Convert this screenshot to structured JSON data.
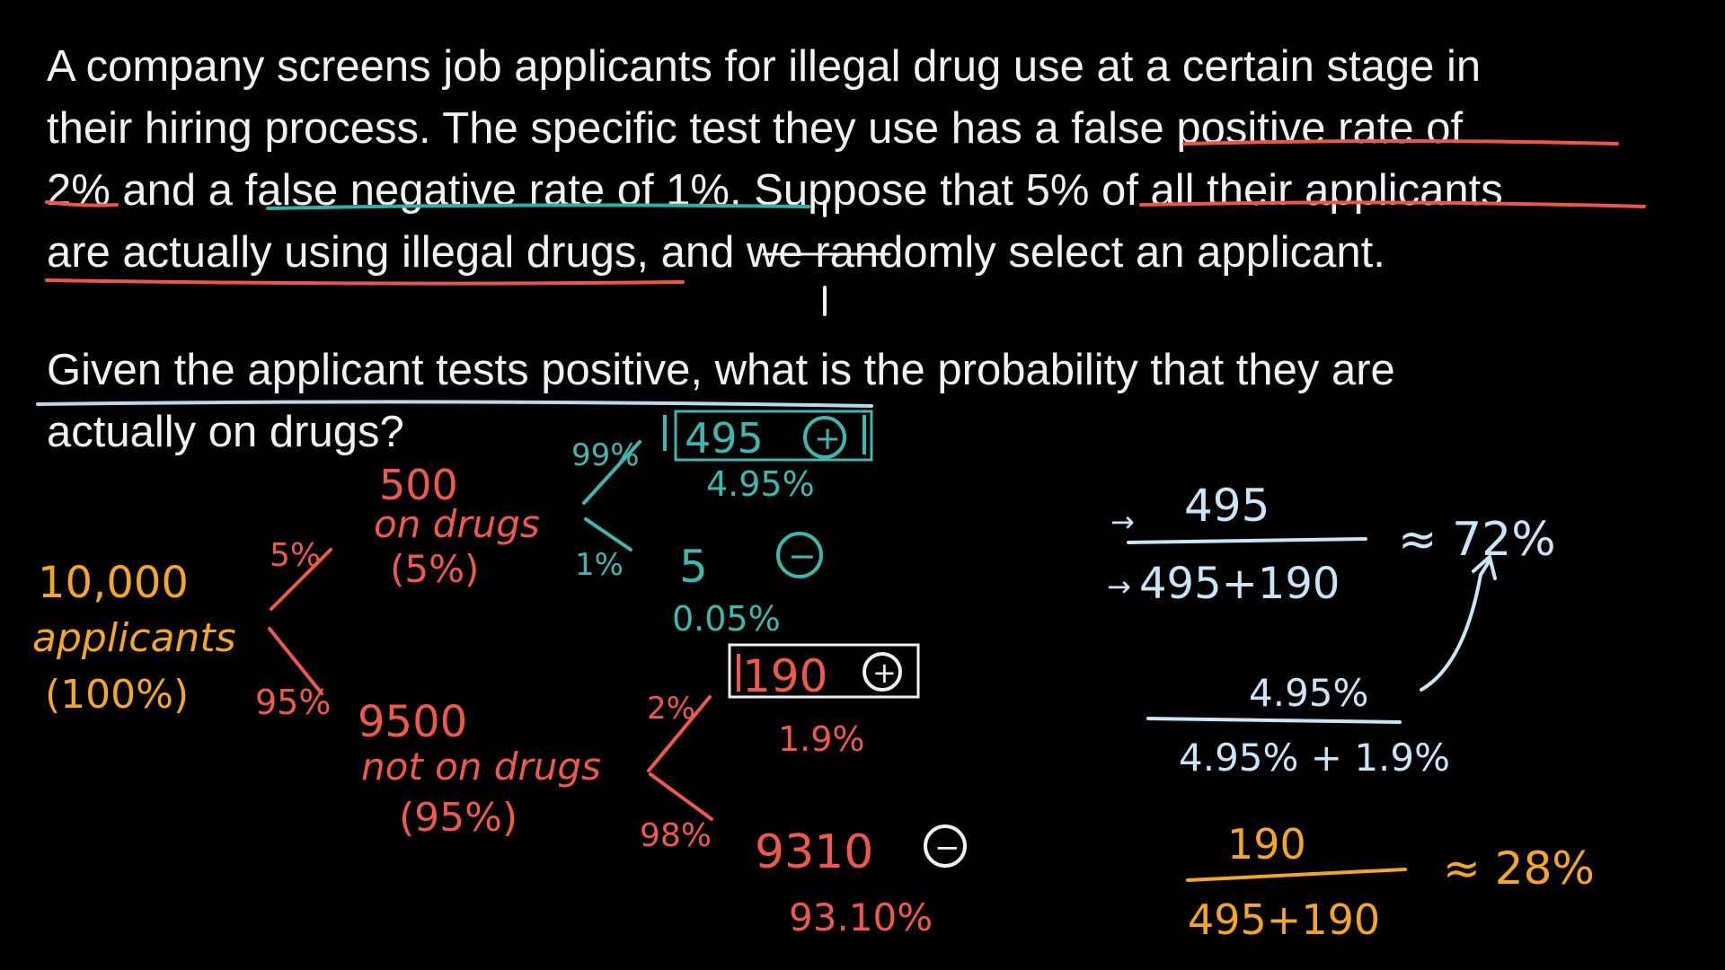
{
  "problem": {
    "lines": [
      "A company screens job applicants for illegal drug use at a certain stage in",
      "their hiring process. The specific test they use has a false positive rate of",
      "2% and a false negative rate of 1%. Suppose that 5% of all their applicants",
      "are actually using illegal drugs, and we randomly select an applicant."
    ]
  },
  "question": {
    "lines": [
      "Given the applicant tests positive, what is the probability that they are",
      "actually on drugs?"
    ]
  },
  "colors": {
    "text": "#f2f2f2",
    "orange": "#f5a623",
    "red": "#f0584a",
    "teal": "#3bb9b0",
    "light_blue": "#c8e6f8",
    "underline_red": "#f05545",
    "underline_teal": "#2eb0a5",
    "underline_blue": "#bcd8ee"
  },
  "tree": {
    "root": {
      "count": "10,000",
      "label": "applicants",
      "pct": "(100%)"
    },
    "branch_drugs": "5%",
    "branch_no_drugs": "95%",
    "drugs": {
      "count": "500",
      "label": "on drugs",
      "pct": "(5%)"
    },
    "no_drugs": {
      "count": "9500",
      "label": "not on drugs",
      "pct": "(95%)"
    },
    "drugs_pos_branch": "99%",
    "drugs_neg_branch": "1%",
    "no_drugs_pos_branch": "2%",
    "no_drugs_neg_branch": "98%",
    "drugs_pos": {
      "count": "495",
      "sign": "+",
      "pct": "4.95%"
    },
    "drugs_neg": {
      "count": "5",
      "sign": "−",
      "pct": "0.05%"
    },
    "no_drugs_pos": {
      "count": "190",
      "sign": "+",
      "pct": "1.9%"
    },
    "no_drugs_neg": {
      "count": "9310",
      "sign": "−",
      "pct": "93.10%"
    }
  },
  "calc": {
    "frac1_num": "495",
    "frac1_den": "495+190",
    "frac1_result": "≈ 72%",
    "frac2_num": "4.95%",
    "frac2_den": "4.95% + 1.9%",
    "frac3_num": "190",
    "frac3_den": "495+190",
    "frac3_result": "≈ 28%"
  }
}
